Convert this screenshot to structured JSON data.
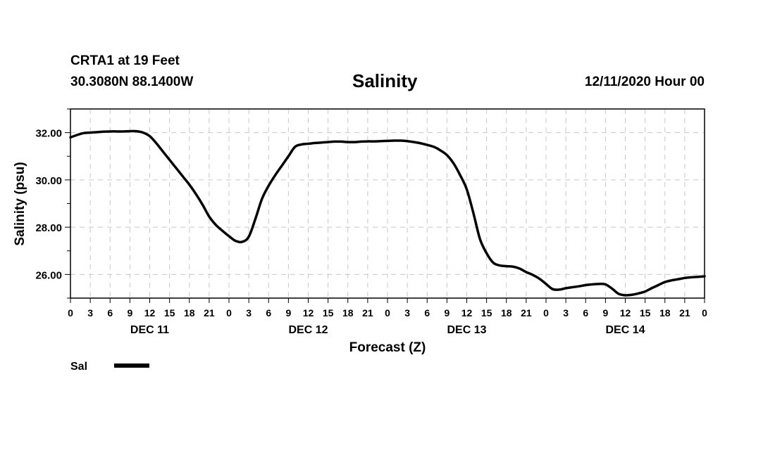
{
  "header": {
    "station": "CRTA1 at 19 Feet",
    "location": "30.3080N 88.1400W",
    "title": "Salinity",
    "datetime": "12/11/2020 Hour 00"
  },
  "chart_data": {
    "type": "line",
    "title": "Salinity",
    "xlabel": "Forecast (Z)",
    "ylabel": "Salinity (psu)",
    "xlim": [
      0,
      96
    ],
    "ylim": [
      25,
      33
    ],
    "yticks": [
      26,
      28,
      30,
      32
    ],
    "ytick_labels": [
      "26.00",
      "28.00",
      "30.00",
      "32.00"
    ],
    "xtick_labels": [
      "0",
      "3",
      "6",
      "9",
      "12",
      "15",
      "18",
      "21",
      "0",
      "3",
      "6",
      "9",
      "12",
      "15",
      "18",
      "21",
      "0",
      "3",
      "6",
      "9",
      "12",
      "15",
      "18",
      "21",
      "0",
      "3",
      "6",
      "9",
      "12",
      "15",
      "18",
      "21",
      "0"
    ],
    "day_labels": [
      {
        "label": "DEC 11",
        "x": 12
      },
      {
        "label": "DEC 12",
        "x": 36
      },
      {
        "label": "DEC 13",
        "x": 60
      },
      {
        "label": "DEC 14",
        "x": 84
      }
    ],
    "grid": true,
    "legend": [
      {
        "name": "Sal",
        "color": "#000000"
      }
    ],
    "series": [
      {
        "name": "Sal",
        "color": "#000000",
        "x": [
          0,
          1,
          2,
          3,
          4,
          5,
          6,
          7,
          8,
          9,
          10,
          11,
          12,
          13,
          14,
          15,
          16,
          17,
          18,
          19,
          20,
          21,
          22,
          23,
          24,
          25,
          26,
          27,
          28,
          29,
          30,
          31,
          32,
          33,
          34,
          35,
          36,
          37,
          38,
          39,
          40,
          41,
          42,
          43,
          44,
          45,
          46,
          47,
          48,
          49,
          50,
          51,
          52,
          53,
          54,
          55,
          56,
          57,
          58,
          59,
          60,
          61,
          62,
          63,
          64,
          65,
          66,
          67,
          68,
          69,
          70,
          71,
          72,
          73,
          74,
          75,
          76,
          77,
          78,
          79,
          80,
          81,
          82,
          83,
          84,
          85,
          86,
          87,
          88,
          89,
          90,
          91,
          92,
          93,
          94,
          95,
          96
        ],
        "values": [
          31.8,
          31.9,
          31.98,
          32.0,
          32.02,
          32.04,
          32.05,
          32.05,
          32.05,
          32.06,
          32.06,
          32.0,
          31.85,
          31.55,
          31.2,
          30.85,
          30.5,
          30.15,
          29.8,
          29.4,
          28.95,
          28.45,
          28.1,
          27.85,
          27.62,
          27.42,
          27.38,
          27.6,
          28.35,
          29.2,
          29.75,
          30.2,
          30.6,
          31.0,
          31.4,
          31.5,
          31.53,
          31.56,
          31.58,
          31.6,
          31.62,
          31.62,
          31.6,
          31.6,
          31.62,
          31.63,
          31.63,
          31.64,
          31.65,
          31.66,
          31.66,
          31.64,
          31.6,
          31.55,
          31.48,
          31.4,
          31.25,
          31.05,
          30.7,
          30.2,
          29.6,
          28.6,
          27.5,
          26.9,
          26.5,
          26.38,
          26.35,
          26.33,
          26.25,
          26.1,
          25.98,
          25.82,
          25.6,
          25.38,
          25.36,
          25.42,
          25.46,
          25.5,
          25.55,
          25.58,
          25.6,
          25.58,
          25.4,
          25.18,
          25.12,
          25.14,
          25.2,
          25.28,
          25.42,
          25.55,
          25.68,
          25.75,
          25.8,
          25.85,
          25.88,
          25.9,
          25.92
        ]
      }
    ]
  }
}
